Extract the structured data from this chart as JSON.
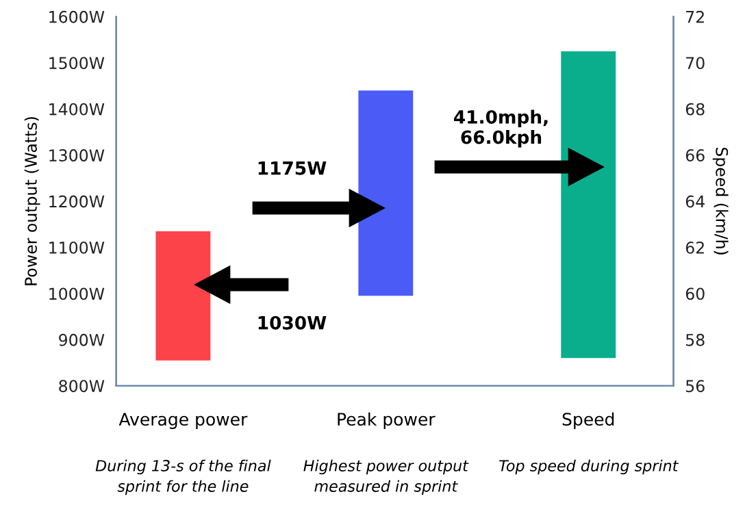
{
  "chart_data": {
    "type": "bar",
    "ylabel": "Power output (Watts)",
    "y2label": "Speed (km/h)",
    "categories": [
      "Average power",
      "Peak power",
      "Speed"
    ],
    "series": [
      {
        "colors": [
          "#fc4349",
          "#4a5cf5",
          null
        ],
        "values": [
          280,
          445,
          null
        ],
        "base": [
          855,
          995,
          null
        ]
      },
      {
        "axis": "y2",
        "colors": [
          null,
          null,
          "#0aae8c"
        ],
        "values": [
          null,
          null,
          13.3
        ],
        "base": [
          null,
          null,
          57.2
        ]
      }
    ],
    "ylim": [
      800,
      1600
    ],
    "yticks": [
      {
        "value": 800,
        "label": "800W"
      },
      {
        "value": 900,
        "label": "900W"
      },
      {
        "value": 1000,
        "label": "1000W"
      },
      {
        "value": 1100,
        "label": "1100W"
      },
      {
        "value": 1200,
        "label": "1200W"
      },
      {
        "value": 1300,
        "label": "1300W"
      },
      {
        "value": 1400,
        "label": "1400W"
      },
      {
        "value": 1500,
        "label": "1500W"
      },
      {
        "value": 1600,
        "label": "1600W"
      }
    ],
    "y2lim": [
      56,
      72
    ],
    "y2ticks": [
      56,
      58,
      60,
      62,
      64,
      66,
      68,
      70,
      72
    ],
    "grid": false,
    "legend": false,
    "annotations": [
      "1030W",
      "1175W",
      "41.0mph,\n66.0kph",
      "During 13-s of the final\nsprint for the line",
      "Highest power output\nmeasured in sprint",
      "Top speed during sprint"
    ]
  }
}
